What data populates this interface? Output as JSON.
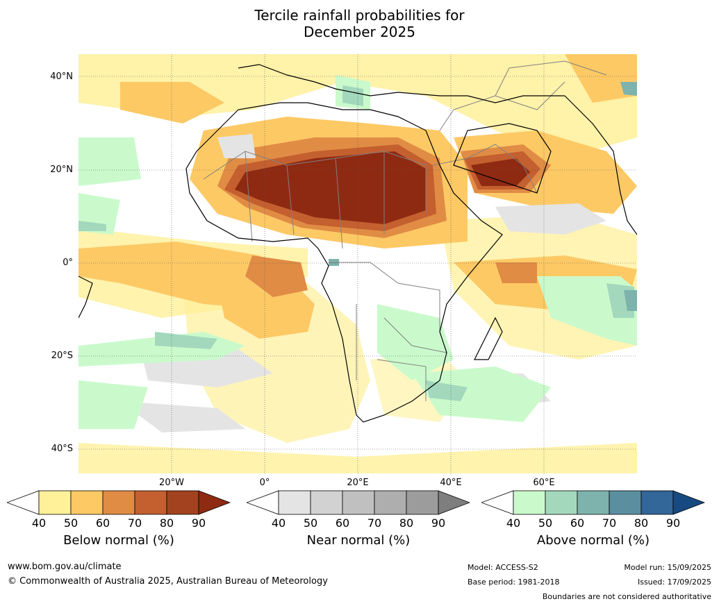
{
  "title_line1": "Tercile rainfall probabilities for",
  "title_line2": "December 2025",
  "map": {
    "lat_labels": [
      "40°N",
      "20°N",
      "0°",
      "20°S",
      "40°S"
    ],
    "lon_labels": [
      "20°W",
      "0°",
      "20°E",
      "40°E",
      "60°E"
    ]
  },
  "colorbars": [
    {
      "label": "Below normal (%)",
      "ticks": [
        "40",
        "50",
        "60",
        "70",
        "80",
        "90"
      ],
      "colors": [
        "#ffffff",
        "#fff09a",
        "#fdc965",
        "#e08c45",
        "#c45f2f",
        "#a3421f",
        "#8f2a12"
      ]
    },
    {
      "label": "Near normal (%)",
      "ticks": [
        "40",
        "50",
        "60",
        "70",
        "80",
        "90"
      ],
      "colors": [
        "#ffffff",
        "#e4e4e4",
        "#d2d2d2",
        "#c0c0c0",
        "#aeaeae",
        "#9c9c9c",
        "#7e7e7e"
      ]
    },
    {
      "label": "Above normal (%)",
      "ticks": [
        "40",
        "50",
        "60",
        "70",
        "80",
        "90"
      ],
      "colors": [
        "#ffffff",
        "#cafacc",
        "#a3d8bc",
        "#7db3ac",
        "#5b8fa0",
        "#336699",
        "#174a80"
      ]
    }
  ],
  "footer": {
    "url": "www.bom.gov.au/climate",
    "copyright": "© Commonwealth of Australia 2025, Australian Bureau of Meteorology",
    "model": "Model: ACCESS-S2",
    "base_period": "Base period: 1981-2018",
    "model_run": "Model run: 15/09/2025",
    "issued": "Issued: 17/09/2025",
    "disclaimer": "Boundaries are not considered authoritative"
  }
}
